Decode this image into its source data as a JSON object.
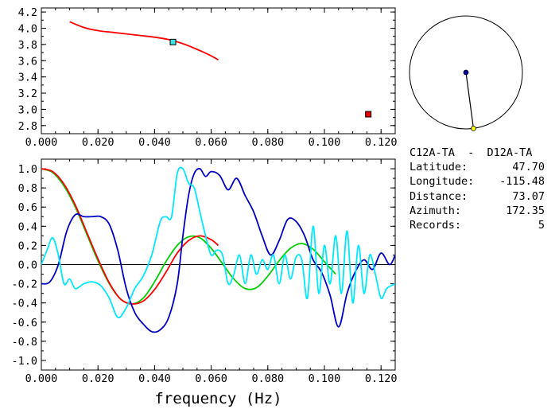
{
  "station": {
    "pair": "C12A-TA  -  D12A-TA",
    "latitude_label": "Latitude:",
    "latitude": "47.70",
    "longitude_label": "Longitude:",
    "longitude": "-115.48",
    "distance_label": "Distance:",
    "distance": "73.07",
    "azimuth_label": "Azimuth:",
    "azimuth": "172.35",
    "records_label": "Records:",
    "records": "5"
  },
  "colors": {
    "red": "#ff0000",
    "cyan": "#00e8ff",
    "blue": "#0000c8",
    "green": "#00d000",
    "marker_cyan": "#40e0e0",
    "marker_red": "#e00000",
    "dot_blue": "#0000a0",
    "dot_yellow": "#ffff00"
  },
  "chart_data": [
    {
      "type": "line",
      "xlim": [
        0.0,
        0.125
      ],
      "ylim": [
        2.7,
        4.25
      ],
      "xticks": [
        "0.000",
        "0.020",
        "0.040",
        "0.060",
        "0.080",
        "0.100",
        "0.120"
      ],
      "yticks": [
        "2.8",
        "3.0",
        "3.2",
        "3.4",
        "3.6",
        "3.8",
        "4.0",
        "4.2"
      ],
      "series": [
        {
          "color": "red",
          "x": [
            0.01,
            0.015,
            0.02,
            0.025,
            0.03,
            0.035,
            0.04,
            0.045,
            0.05,
            0.055,
            0.06,
            0.0625
          ],
          "y": [
            4.08,
            4.01,
            3.97,
            3.95,
            3.93,
            3.91,
            3.89,
            3.86,
            3.81,
            3.74,
            3.66,
            3.61
          ]
        }
      ],
      "markers": [
        {
          "color": "marker_cyan",
          "x": 0.0465,
          "y": 3.83
        },
        {
          "color": "marker_red",
          "x": 0.1155,
          "y": 2.94
        }
      ]
    },
    {
      "type": "line",
      "xlim": [
        0.0,
        0.125
      ],
      "ylim": [
        -1.1,
        1.1
      ],
      "xlabel": "frequency (Hz)",
      "xticks": [
        "0.000",
        "0.020",
        "0.040",
        "0.060",
        "0.080",
        "0.100",
        "0.120"
      ],
      "yticks": [
        "-1.0",
        "-0.8",
        "-0.6",
        "-0.4",
        "-0.2",
        "0.0",
        "0.2",
        "0.4",
        "0.6",
        "0.8",
        "1.0"
      ],
      "zero_line": true,
      "series": [
        {
          "color": "green",
          "x": [
            0,
            0.004,
            0.008,
            0.012,
            0.016,
            0.02,
            0.024,
            0.028,
            0.032,
            0.036,
            0.04,
            0.044,
            0.048,
            0.052,
            0.056,
            0.06,
            0.064,
            0.068,
            0.072,
            0.076,
            0.08,
            0.084,
            0.088,
            0.092,
            0.096,
            0.1,
            0.104
          ],
          "y": [
            1.0,
            0.96,
            0.82,
            0.6,
            0.32,
            0.04,
            -0.2,
            -0.36,
            -0.41,
            -0.35,
            -0.18,
            0.03,
            0.2,
            0.29,
            0.28,
            0.17,
            0.01,
            -0.15,
            -0.25,
            -0.24,
            -0.12,
            0.04,
            0.17,
            0.22,
            0.16,
            0.03,
            -0.1
          ]
        },
        {
          "color": "red",
          "x": [
            0,
            0.004,
            0.008,
            0.012,
            0.016,
            0.02,
            0.024,
            0.028,
            0.032,
            0.036,
            0.04,
            0.044,
            0.048,
            0.052,
            0.056,
            0.06,
            0.0625
          ],
          "y": [
            1.0,
            0.97,
            0.84,
            0.62,
            0.34,
            0.06,
            -0.19,
            -0.36,
            -0.41,
            -0.38,
            -0.26,
            -0.08,
            0.12,
            0.25,
            0.3,
            0.26,
            0.2
          ]
        },
        {
          "color": "blue",
          "x": [
            0,
            0.003,
            0.006,
            0.009,
            0.012,
            0.015,
            0.018,
            0.021,
            0.024,
            0.027,
            0.03,
            0.033,
            0.036,
            0.039,
            0.042,
            0.045,
            0.048,
            0.05,
            0.052,
            0.054,
            0.056,
            0.058,
            0.06,
            0.063,
            0.066,
            0.069,
            0.072,
            0.075,
            0.078,
            0.081,
            0.084,
            0.087,
            0.09,
            0.093,
            0.096,
            0.099,
            0.102,
            0.105,
            0.108,
            0.111,
            0.114,
            0.117,
            0.12,
            0.123,
            0.125
          ],
          "y": [
            -0.2,
            -0.18,
            0.0,
            0.35,
            0.52,
            0.5,
            0.5,
            0.5,
            0.42,
            0.15,
            -0.25,
            -0.5,
            -0.62,
            -0.7,
            -0.68,
            -0.55,
            -0.2,
            0.3,
            0.72,
            0.95,
            1.0,
            0.92,
            0.97,
            0.93,
            0.78,
            0.9,
            0.72,
            0.55,
            0.3,
            0.1,
            0.25,
            0.47,
            0.45,
            0.3,
            0.05,
            -0.08,
            -0.32,
            -0.65,
            -0.3,
            -0.07,
            0.05,
            -0.05,
            0.12,
            0.0,
            0.1
          ]
        },
        {
          "color": "cyan",
          "x": [
            0,
            0.002,
            0.004,
            0.006,
            0.008,
            0.01,
            0.012,
            0.015,
            0.018,
            0.021,
            0.024,
            0.027,
            0.03,
            0.033,
            0.036,
            0.039,
            0.042,
            0.044,
            0.046,
            0.048,
            0.05,
            0.052,
            0.054,
            0.056,
            0.058,
            0.06,
            0.062,
            0.064,
            0.066,
            0.068,
            0.07,
            0.072,
            0.074,
            0.076,
            0.078,
            0.08,
            0.082,
            0.084,
            0.086,
            0.088,
            0.09,
            0.092,
            0.094,
            0.096,
            0.098,
            0.1,
            0.102,
            0.104,
            0.106,
            0.108,
            0.11,
            0.112,
            0.114,
            0.116,
            0.118,
            0.12,
            0.122,
            0.125
          ],
          "y": [
            0.0,
            0.15,
            0.28,
            0.1,
            -0.2,
            -0.15,
            -0.25,
            -0.2,
            -0.18,
            -0.22,
            -0.35,
            -0.55,
            -0.45,
            -0.25,
            -0.12,
            0.1,
            0.45,
            0.5,
            0.5,
            0.95,
            1.0,
            0.85,
            0.8,
            0.55,
            0.3,
            0.1,
            0.15,
            0.1,
            -0.2,
            -0.1,
            0.1,
            -0.2,
            0.1,
            -0.1,
            0.05,
            -0.05,
            0.1,
            -0.2,
            0.1,
            -0.15,
            0.08,
            0.05,
            -0.35,
            0.4,
            -0.3,
            0.2,
            -0.2,
            0.3,
            -0.3,
            0.35,
            -0.4,
            0.2,
            -0.3,
            0.1,
            -0.1,
            -0.35,
            -0.25,
            -0.2
          ]
        }
      ]
    },
    {
      "type": "scatter",
      "description_type": "azimuth-circle",
      "azimuth_deg": 172.35,
      "points": [
        {
          "name": "center",
          "color": "dot_blue"
        },
        {
          "name": "edge",
          "color": "dot_yellow"
        }
      ]
    }
  ]
}
